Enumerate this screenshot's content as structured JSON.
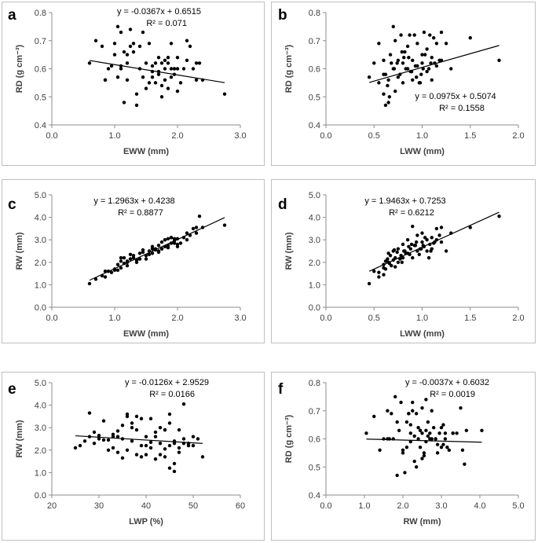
{
  "figure": {
    "panel_count": 6
  },
  "chart_data": [
    {
      "type": "scatter",
      "panel": "a",
      "xlabel": "EWW (mm)",
      "ylabel": "RD (g cm⁻³)",
      "xlim": [
        0,
        3
      ],
      "ylim": [
        0.4,
        0.8
      ],
      "xticks": [
        "0.0",
        "1.0",
        "2.0",
        "3.0"
      ],
      "yticks": [
        "0.4",
        "0.5",
        "0.6",
        "0.7",
        "0.8"
      ],
      "equation": "y = -0.0367x + 0.6515",
      "r2": "R² = 0.071",
      "trendline": {
        "slope": -0.0367,
        "intercept": 0.6515,
        "x_range": [
          0.6,
          2.75
        ]
      },
      "x": [
        0.6,
        0.7,
        0.8,
        0.85,
        0.9,
        0.95,
        1.0,
        1.05,
        1.05,
        1.1,
        1.1,
        1.15,
        1.15,
        1.2,
        1.2,
        1.25,
        1.3,
        1.35,
        1.4,
        1.4,
        1.45,
        1.5,
        1.55,
        1.6,
        1.6,
        1.65,
        1.7,
        1.7,
        1.75,
        1.75,
        1.8,
        1.8,
        1.85,
        1.85,
        1.9,
        1.9,
        1.95,
        2.0,
        2.0,
        2.1,
        2.15,
        2.2,
        2.25,
        2.3,
        2.35,
        2.4,
        2.75,
        1.0,
        1.2,
        1.35,
        1.55,
        1.65,
        1.85,
        1.95,
        2.05,
        2.15,
        2.3,
        1.1,
        1.3,
        1.5,
        1.7,
        0.85,
        1.25,
        1.45,
        1.75,
        2.0,
        1.9,
        1.6,
        1.8,
        1.95
      ],
      "y": [
        0.62,
        0.7,
        0.68,
        0.56,
        0.6,
        0.61,
        0.69,
        0.75,
        0.57,
        0.73,
        0.6,
        0.66,
        0.48,
        0.62,
        0.56,
        0.68,
        0.69,
        0.47,
        0.6,
        0.68,
        0.73,
        0.62,
        0.69,
        0.57,
        0.59,
        0.62,
        0.59,
        0.64,
        0.62,
        0.5,
        0.56,
        0.6,
        0.53,
        0.64,
        0.57,
        0.69,
        0.6,
        0.64,
        0.52,
        0.6,
        0.63,
        0.68,
        0.6,
        0.62,
        0.62,
        0.56,
        0.51,
        0.65,
        0.65,
        0.51,
        0.55,
        0.55,
        0.62,
        0.6,
        0.55,
        0.7,
        0.56,
        0.61,
        0.66,
        0.53,
        0.58,
        0.56,
        0.74,
        0.57,
        0.54,
        0.6,
        0.6,
        0.61,
        0.63,
        0.58
      ]
    },
    {
      "type": "scatter",
      "panel": "b",
      "xlabel": "LWW (mm)",
      "ylabel": "RD (g cm⁻³)",
      "xlim": [
        0,
        2
      ],
      "ylim": [
        0.4,
        0.8
      ],
      "xticks": [
        "0.0",
        "0.5",
        "1.0",
        "1.5",
        "2.0"
      ],
      "yticks": [
        "0.4",
        "0.5",
        "0.6",
        "0.7",
        "0.8"
      ],
      "equation": "y = 0.0975x + 0.5074",
      "r2": "R² = 0.1558",
      "trendline": {
        "slope": 0.0975,
        "intercept": 0.5074,
        "x_range": [
          0.45,
          1.8
        ]
      },
      "x": [
        0.45,
        0.5,
        0.55,
        0.6,
        0.6,
        0.62,
        0.65,
        0.65,
        0.68,
        0.7,
        0.7,
        0.72,
        0.75,
        0.75,
        0.78,
        0.8,
        0.8,
        0.82,
        0.85,
        0.85,
        0.88,
        0.9,
        0.9,
        0.92,
        0.95,
        0.95,
        0.98,
        1.0,
        1.0,
        1.02,
        1.05,
        1.05,
        1.08,
        1.1,
        1.1,
        1.12,
        1.15,
        1.15,
        1.2,
        1.2,
        1.25,
        1.3,
        1.5,
        1.8,
        0.55,
        0.62,
        0.67,
        0.72,
        0.77,
        0.83,
        0.87,
        0.93,
        0.97,
        1.03,
        1.07,
        1.13,
        0.6,
        0.66,
        0.74,
        0.79,
        0.86,
        0.94,
        1.01,
        1.09,
        0.64,
        0.71,
        0.81,
        0.89,
        0.99,
        1.18
      ],
      "y": [
        0.57,
        0.62,
        0.55,
        0.51,
        0.63,
        0.58,
        0.48,
        0.56,
        0.62,
        0.75,
        0.6,
        0.52,
        0.63,
        0.57,
        0.72,
        0.62,
        0.55,
        0.66,
        0.6,
        0.68,
        0.59,
        0.63,
        0.56,
        0.72,
        0.61,
        0.69,
        0.55,
        0.62,
        0.65,
        0.73,
        0.59,
        0.67,
        0.72,
        0.64,
        0.56,
        0.71,
        0.61,
        0.69,
        0.63,
        0.73,
        0.69,
        0.6,
        0.71,
        0.63,
        0.69,
        0.47,
        0.65,
        0.7,
        0.58,
        0.6,
        0.72,
        0.61,
        0.55,
        0.65,
        0.6,
        0.62,
        0.58,
        0.5,
        0.62,
        0.66,
        0.64,
        0.57,
        0.6,
        0.62,
        0.54,
        0.6,
        0.64,
        0.59,
        0.58,
        0.63
      ]
    },
    {
      "type": "scatter",
      "panel": "c",
      "xlabel": "EWW (mm)",
      "ylabel": "RW (mm)",
      "xlim": [
        0,
        3
      ],
      "ylim": [
        0,
        5
      ],
      "xticks": [
        "0.0",
        "1.0",
        "2.0",
        "3.0"
      ],
      "yticks": [
        "0.0",
        "1.0",
        "2.0",
        "3.0",
        "4.0",
        "5.0"
      ],
      "equation": "y = 1.2963x + 0.4238",
      "r2": "R² = 0.8877",
      "trendline": {
        "slope": 1.2963,
        "intercept": 0.4238,
        "x_range": [
          0.6,
          2.75
        ]
      },
      "x": [
        0.6,
        0.7,
        0.8,
        0.85,
        0.9,
        0.95,
        1.0,
        1.05,
        1.05,
        1.1,
        1.1,
        1.15,
        1.15,
        1.2,
        1.2,
        1.25,
        1.3,
        1.35,
        1.4,
        1.4,
        1.45,
        1.5,
        1.55,
        1.6,
        1.6,
        1.65,
        1.7,
        1.7,
        1.75,
        1.75,
        1.8,
        1.8,
        1.85,
        1.85,
        1.9,
        1.9,
        1.95,
        2.0,
        2.0,
        2.1,
        2.15,
        2.2,
        2.25,
        2.3,
        2.35,
        2.4,
        2.75,
        1.0,
        1.2,
        1.35,
        1.55,
        1.65,
        1.85,
        1.95,
        2.05,
        2.15,
        2.3,
        1.1,
        1.3,
        1.5,
        1.7,
        0.85,
        1.25,
        1.45,
        1.75,
        2.0,
        1.9,
        1.6,
        1.8,
        1.95
      ],
      "y": [
        1.05,
        1.25,
        1.4,
        1.35,
        1.6,
        1.55,
        1.7,
        1.65,
        1.9,
        1.75,
        2.05,
        1.95,
        2.2,
        2.0,
        1.85,
        2.15,
        2.3,
        2.1,
        2.4,
        2.15,
        2.55,
        2.3,
        2.5,
        2.4,
        2.7,
        2.55,
        2.45,
        2.75,
        2.6,
        2.9,
        2.7,
        3.0,
        2.75,
        3.05,
        2.85,
        3.1,
        2.95,
        3.05,
        2.8,
        3.1,
        3.3,
        3.2,
        3.5,
        3.55,
        4.05,
        3.55,
        3.65,
        1.65,
        2.05,
        2.0,
        2.35,
        2.6,
        2.65,
        2.85,
        2.85,
        3.0,
        3.3,
        2.2,
        2.2,
        2.15,
        2.5,
        1.6,
        2.35,
        2.45,
        2.6,
        2.7,
        3.1,
        2.6,
        3.0,
        3.05
      ]
    },
    {
      "type": "scatter",
      "panel": "d",
      "xlabel": "LWW (mm)",
      "ylabel": "RW (mm)",
      "xlim": [
        0,
        2
      ],
      "ylim": [
        0,
        5
      ],
      "xticks": [
        "0.0",
        "0.5",
        "1.0",
        "1.5",
        "2.0"
      ],
      "yticks": [
        "0.0",
        "1.0",
        "2.0",
        "3.0",
        "4.0",
        "5.0"
      ],
      "equation": "y = 1.9463x + 0.7253",
      "r2": "R² = 0.6212",
      "trendline": {
        "slope": 1.9463,
        "intercept": 0.7253,
        "x_range": [
          0.45,
          1.8
        ]
      },
      "x": [
        0.45,
        0.5,
        0.55,
        0.6,
        0.6,
        0.62,
        0.65,
        0.65,
        0.68,
        0.7,
        0.7,
        0.72,
        0.75,
        0.75,
        0.78,
        0.8,
        0.8,
        0.82,
        0.85,
        0.85,
        0.88,
        0.9,
        0.9,
        0.92,
        0.95,
        0.95,
        0.98,
        1.0,
        1.0,
        1.02,
        1.05,
        1.05,
        1.08,
        1.1,
        1.1,
        1.12,
        1.15,
        1.15,
        1.2,
        1.2,
        1.25,
        1.3,
        1.5,
        1.8,
        0.55,
        0.62,
        0.67,
        0.72,
        0.77,
        0.83,
        0.87,
        0.93,
        0.97,
        1.03,
        1.07,
        1.13,
        0.6,
        0.66,
        0.74,
        0.79,
        0.86,
        0.94,
        1.01,
        1.09,
        0.64,
        0.71,
        0.81,
        0.89,
        0.99,
        1.18
      ],
      "y": [
        1.05,
        1.6,
        1.35,
        1.45,
        1.9,
        1.7,
        2.0,
        2.4,
        1.85,
        2.1,
        2.5,
        2.2,
        2.0,
        2.6,
        2.3,
        2.2,
        2.8,
        2.5,
        2.4,
        3.0,
        2.6,
        3.6,
        2.2,
        2.75,
        2.5,
        3.2,
        2.6,
        2.9,
        3.3,
        2.7,
        2.5,
        3.0,
        2.8,
        3.1,
        2.6,
        2.85,
        3.0,
        3.5,
        2.9,
        3.55,
        2.5,
        3.3,
        3.55,
        4.05,
        1.55,
        2.05,
        2.3,
        1.8,
        2.15,
        2.4,
        2.35,
        2.75,
        2.35,
        3.1,
        2.2,
        2.9,
        1.75,
        1.95,
        2.45,
        2.0,
        2.7,
        2.9,
        2.75,
        2.5,
        2.15,
        2.55,
        2.5,
        2.8,
        2.6,
        3.2
      ]
    },
    {
      "type": "scatter",
      "panel": "e",
      "xlabel": "LWP (%)",
      "ylabel": "RW (mm)",
      "xlim": [
        20,
        60
      ],
      "ylim": [
        0,
        5
      ],
      "xticks": [
        "20",
        "30",
        "40",
        "50",
        "60"
      ],
      "yticks": [
        "0.0",
        "1.0",
        "2.0",
        "3.0",
        "4.0",
        "5.0"
      ],
      "equation": "y = -0.0126x + 2.9529",
      "r2": "R² = 0.0166",
      "trendline": {
        "slope": -0.0126,
        "intercept": 2.9529,
        "x_range": [
          25,
          52
        ]
      },
      "x": [
        25,
        26,
        27,
        28,
        28,
        29,
        30,
        31,
        32,
        33,
        33,
        34,
        34,
        35,
        35,
        36,
        36,
        37,
        37,
        38,
        38,
        39,
        39,
        40,
        40,
        41,
        41,
        42,
        42,
        43,
        43,
        44,
        44,
        45,
        45,
        45,
        46,
        46,
        47,
        47,
        48,
        48,
        49,
        50,
        51,
        52,
        35,
        37,
        39,
        41,
        43,
        45,
        47,
        36,
        38,
        42,
        44,
        46,
        30,
        32,
        34,
        40,
        48,
        29,
        31,
        33,
        44,
        46,
        50,
        49
      ],
      "y": [
        2.1,
        2.2,
        2.4,
        2.6,
        3.65,
        2.3,
        2.5,
        3.3,
        2.0,
        2.1,
        2.7,
        2.6,
        1.9,
        2.5,
        3.1,
        2.0,
        3.5,
        2.4,
        3.2,
        1.8,
        2.9,
        2.2,
        3.4,
        2.6,
        1.8,
        3.4,
        2.1,
        2.6,
        1.6,
        3.0,
        2.3,
        1.7,
        2.9,
        1.2,
        2.2,
        3.6,
        1.05,
        2.4,
        2.9,
        1.9,
        4.05,
        2.5,
        2.3,
        2.2,
        2.5,
        1.7,
        1.65,
        3.0,
        1.7,
        2.35,
        1.8,
        3.2,
        2.1,
        3.6,
        3.5,
        2.8,
        2.9,
        1.4,
        2.65,
        2.45,
        2.85,
        2.2,
        2.3,
        2.8,
        2.45,
        2.6,
        2.05,
        2.3,
        2.6,
        2.2
      ]
    },
    {
      "type": "scatter",
      "panel": "f",
      "xlabel": "RW (mm)",
      "ylabel": "RD (g cm⁻³)",
      "xlim": [
        0,
        5
      ],
      "ylim": [
        0.4,
        0.8
      ],
      "xticks": [
        "0.0",
        "1.0",
        "2.0",
        "3.0",
        "4.0",
        "5.0"
      ],
      "yticks": [
        "0.4",
        "0.5",
        "0.6",
        "0.7",
        "0.8"
      ],
      "equation": "y = -0.0037x + 0.6032",
      "r2": "R² = 0.0019",
      "trendline": {
        "slope": -0.0037,
        "intercept": 0.6032,
        "x_range": [
          1.05,
          4.05
        ]
      },
      "x": [
        1.05,
        1.25,
        1.4,
        1.5,
        1.6,
        1.7,
        1.75,
        1.8,
        1.85,
        1.9,
        1.95,
        2.0,
        2.05,
        2.1,
        2.1,
        2.15,
        2.2,
        2.2,
        2.25,
        2.3,
        2.3,
        2.35,
        2.4,
        2.45,
        2.5,
        2.5,
        2.55,
        2.6,
        2.6,
        2.65,
        2.7,
        2.75,
        2.8,
        2.85,
        2.9,
        2.95,
        3.0,
        3.05,
        3.1,
        3.2,
        3.3,
        3.5,
        3.55,
        3.6,
        3.65,
        4.05,
        1.65,
        2.0,
        2.35,
        2.6,
        2.85,
        3.0,
        3.3,
        2.2,
        2.45,
        2.75,
        3.1,
        1.6,
        2.15,
        2.5,
        2.7,
        2.9,
        3.05,
        1.85,
        2.4,
        2.55,
        3.15,
        3.4,
        2.65,
        2.25
      ],
      "y": [
        0.62,
        0.68,
        0.56,
        0.6,
        0.7,
        0.69,
        0.6,
        0.75,
        0.47,
        0.63,
        0.73,
        0.55,
        0.48,
        0.66,
        0.57,
        0.69,
        0.62,
        0.59,
        0.73,
        0.61,
        0.52,
        0.69,
        0.64,
        0.57,
        0.62,
        0.71,
        0.55,
        0.63,
        0.59,
        0.66,
        0.62,
        0.6,
        0.64,
        0.6,
        0.55,
        0.62,
        0.64,
        0.58,
        0.6,
        0.56,
        0.62,
        0.71,
        0.56,
        0.51,
        0.63,
        0.63,
        0.6,
        0.56,
        0.5,
        0.74,
        0.6,
        0.57,
        0.62,
        0.65,
        0.63,
        0.7,
        0.62,
        0.6,
        0.69,
        0.53,
        0.6,
        0.58,
        0.65,
        0.66,
        0.6,
        0.54,
        0.57,
        0.62,
        0.61,
        0.7
      ]
    }
  ]
}
